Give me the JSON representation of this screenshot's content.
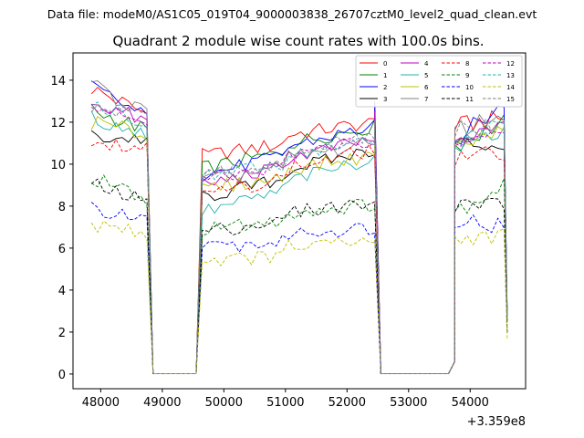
{
  "suptitle": "Data file: modeM0/AS1C05_019T04_9000003838_26707cztM0_level2_quad_clean.evt",
  "chart_data": {
    "type": "line",
    "title": "Quadrant 2 module wise count rates with 100.0s bins.",
    "xlabel": "",
    "ylabel": "",
    "x_offset_label": "+3.359e8",
    "xlim": [
      47550,
      54900
    ],
    "ylim": [
      -0.7,
      15.3
    ],
    "x_ticks": [
      48000,
      49000,
      50000,
      51000,
      52000,
      53000,
      54000
    ],
    "x_tick_labels": [
      "48000",
      "49000",
      "50000",
      "51000",
      "52000",
      "53000",
      "54000"
    ],
    "y_ticks": [
      0,
      2,
      4,
      6,
      8,
      10,
      12,
      14
    ],
    "y_tick_labels": [
      "0",
      "2",
      "4",
      "6",
      "8",
      "10",
      "12",
      "14"
    ],
    "grid": false,
    "legend_position": "top-right",
    "legend_columns": 4,
    "segments": [
      {
        "start": 47850,
        "end": 48750
      },
      {
        "start": 48750,
        "end": 48850
      },
      {
        "start": 48850,
        "end": 49550,
        "value": 0.02
      },
      {
        "start": 49550,
        "end": 49650
      },
      {
        "start": 49650,
        "end": 52450
      },
      {
        "start": 52450,
        "end": 52550
      },
      {
        "start": 52550,
        "end": 53650,
        "value": 0.02
      },
      {
        "start": 53650,
        "end": 53750
      },
      {
        "start": 53750,
        "end": 54550
      },
      {
        "start": 54550,
        "end": 54600
      }
    ],
    "series": [
      {
        "name": "0",
        "color": "#ff0000",
        "dash": "solid",
        "levels": [
          13.6,
          12.4,
          10.4,
          11.6,
          12.2,
          2.4
        ],
        "transition": 11.8,
        "edge": 12.8,
        "end": 3.0
      },
      {
        "name": "1",
        "color": "#008000",
        "dash": "solid",
        "levels": [
          12.6,
          11.6,
          9.8,
          11.4,
          12.0,
          2.5
        ],
        "transition": 10.9,
        "edge": 12.2,
        "end": 2.8
      },
      {
        "name": "2",
        "color": "#0000ff",
        "dash": "solid",
        "levels": [
          13.7,
          12.2,
          9.5,
          11.4,
          12.8,
          2.6
        ],
        "transition": 11.2,
        "edge": 13.0,
        "end": 3.0
      },
      {
        "name": "3",
        "color": "#000000",
        "dash": "solid",
        "levels": [
          11.3,
          11.2,
          8.4,
          10.3,
          10.9,
          2.3
        ],
        "transition": 11.0,
        "edge": 10.5,
        "end": 2.5
      },
      {
        "name": "4",
        "color": "#bf00bf",
        "dash": "solid",
        "levels": [
          13.0,
          12.0,
          9.0,
          10.8,
          12.2,
          2.5
        ],
        "transition": 11.0,
        "edge": 12.5,
        "end": 2.8
      },
      {
        "name": "5",
        "color": "#20b2aa",
        "dash": "solid",
        "levels": [
          12.2,
          11.4,
          7.7,
          9.9,
          11.6,
          2.3
        ],
        "transition": 10.8,
        "edge": 11.2,
        "end": 2.6
      },
      {
        "name": "6",
        "color": "#bfbf00",
        "dash": "solid",
        "levels": [
          12.0,
          11.4,
          8.8,
          10.0,
          11.6,
          2.3
        ],
        "transition": 10.8,
        "edge": 11.4,
        "end": 2.6
      },
      {
        "name": "7",
        "color": "#808080",
        "dash": "solid",
        "levels": [
          13.8,
          12.4,
          9.2,
          10.6,
          12.4,
          2.5
        ],
        "transition": 11.6,
        "edge": 12.1,
        "end": 2.8
      },
      {
        "name": "8",
        "color": "#ff0000",
        "dash": "dashed",
        "levels": [
          11.2,
          10.8,
          8.5,
          10.3,
          10.5,
          2.2
        ],
        "transition": 10.2,
        "edge": 10.4,
        "end": 2.5
      },
      {
        "name": "9",
        "color": "#008000",
        "dash": "dashed",
        "levels": [
          9.4,
          8.2,
          6.9,
          7.7,
          9.0,
          1.9
        ],
        "transition": 7.8,
        "edge": 8.0,
        "end": 2.1
      },
      {
        "name": "10",
        "color": "#0000ff",
        "dash": "dashed",
        "levels": [
          7.9,
          7.2,
          6.0,
          6.6,
          7.0,
          1.7
        ],
        "transition": 7.4,
        "edge": 6.5,
        "end": 1.9
      },
      {
        "name": "11",
        "color": "#000000",
        "dash": "dashed",
        "levels": [
          9.0,
          8.2,
          6.8,
          7.8,
          8.2,
          1.9
        ],
        "transition": 8.0,
        "edge": 8.0,
        "end": 2.0
      },
      {
        "name": "12",
        "color": "#bf00bf",
        "dash": "dashed",
        "levels": [
          12.8,
          11.8,
          9.2,
          10.8,
          11.6,
          2.4
        ],
        "transition": 11.0,
        "edge": 11.5,
        "end": 2.7
      },
      {
        "name": "13",
        "color": "#20b2aa",
        "dash": "dashed",
        "levels": [
          12.9,
          12.0,
          9.4,
          10.7,
          11.8,
          2.4
        ],
        "transition": 11.2,
        "edge": 11.6,
        "end": 2.7
      },
      {
        "name": "14",
        "color": "#bfbf00",
        "dash": "dashed",
        "levels": [
          7.2,
          6.6,
          5.4,
          5.9,
          6.7,
          1.6
        ],
        "transition": 6.4,
        "edge": 6.4,
        "end": 1.7
      },
      {
        "name": "15",
        "color": "#808080",
        "dash": "dashed",
        "levels": [
          12.6,
          12.2,
          9.4,
          10.9,
          11.8,
          2.4
        ],
        "transition": 11.6,
        "edge": 11.6,
        "end": 2.7
      }
    ]
  }
}
